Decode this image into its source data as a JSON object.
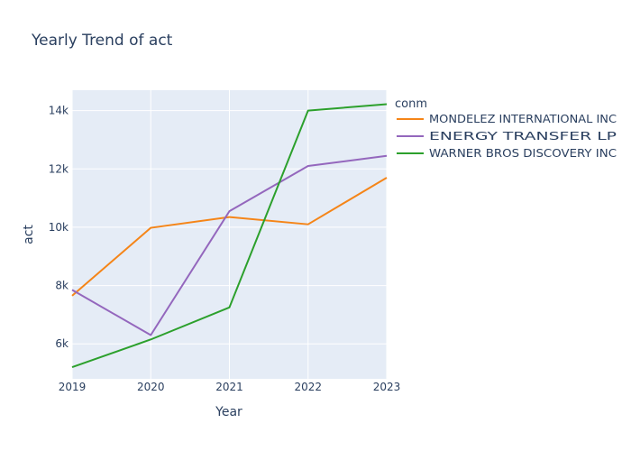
{
  "chart_data": {
    "type": "line",
    "title": "Yearly Trend of act",
    "xlabel": "Year",
    "ylabel": "act",
    "x": [
      2019,
      2020,
      2021,
      2022,
      2023
    ],
    "x_ticks": [
      "2019",
      "2020",
      "2021",
      "2022",
      "2023"
    ],
    "y_ticks": [
      6000,
      8000,
      10000,
      12000,
      14000
    ],
    "y_tick_labels": [
      "6k",
      "8k",
      "10k",
      "12k",
      "14k"
    ],
    "xlim": [
      2019,
      2023
    ],
    "ylim": [
      4800,
      14700
    ],
    "grid": true,
    "legend_title": "conm",
    "legend_position": "right",
    "series": [
      {
        "name": "MONDELEZ INTERNATIONAL INC",
        "color": "#f58518",
        "values": [
          7650,
          9980,
          10350,
          10100,
          11700
        ]
      },
      {
        "name": "ENERGY TRANSFER LP",
        "color": "#9467bd",
        "values": [
          7850,
          6300,
          10550,
          12100,
          12450
        ]
      },
      {
        "name": "WARNER BROS DISCOVERY INC",
        "color": "#2ca02c",
        "values": [
          5200,
          6150,
          7250,
          14000,
          14220
        ]
      }
    ]
  }
}
